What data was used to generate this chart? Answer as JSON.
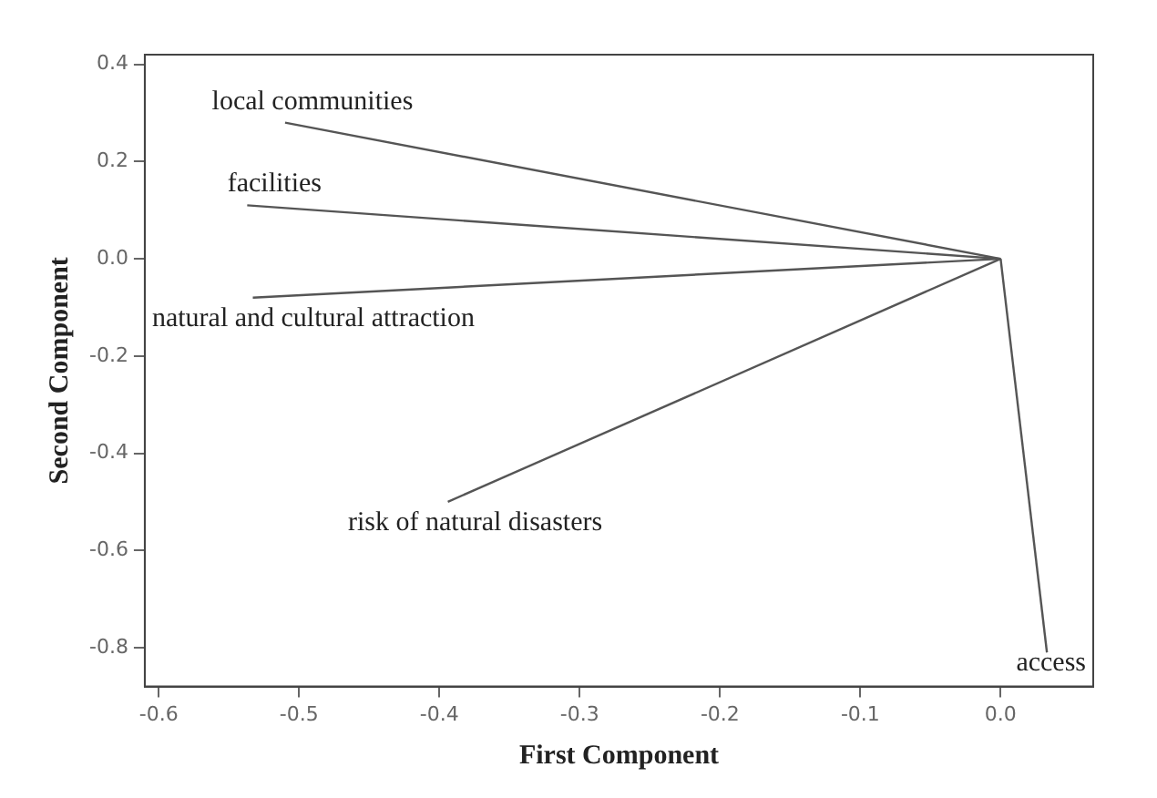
{
  "chart_data": {
    "type": "line",
    "xlabel": "First Component",
    "ylabel": "Second Component",
    "xlim": [
      -0.61,
      0.066
    ],
    "ylim": [
      -0.88,
      0.42
    ],
    "xticks": [
      {
        "value": -0.6,
        "label": "-0.6"
      },
      {
        "value": -0.5,
        "label": "-0.5"
      },
      {
        "value": -0.4,
        "label": "-0.4"
      },
      {
        "value": -0.3,
        "label": "-0.3"
      },
      {
        "value": -0.2,
        "label": "-0.2"
      },
      {
        "value": -0.1,
        "label": "-0.1"
      },
      {
        "value": 0,
        "label": "0.0"
      }
    ],
    "yticks": [
      {
        "value": -0.8,
        "label": "-0.8"
      },
      {
        "value": -0.6,
        "label": "-0.6"
      },
      {
        "value": -0.4,
        "label": "-0.4"
      },
      {
        "value": -0.2,
        "label": "-0.2"
      },
      {
        "value": 0,
        "label": "0.0"
      },
      {
        "value": 0.2,
        "label": "0.2"
      },
      {
        "value": 0.4,
        "label": "0.4"
      }
    ],
    "grid": false,
    "legend": false,
    "marker": "none",
    "line_style": "solid",
    "series": [
      {
        "name": "local communities",
        "color": "#555555",
        "x": [
          0,
          -0.51
        ],
        "values": [
          0,
          0.28
        ]
      },
      {
        "name": "facilities",
        "color": "#555555",
        "x": [
          0,
          -0.537
        ],
        "values": [
          0,
          0.11
        ]
      },
      {
        "name": "natural and cultural attraction",
        "color": "#555555",
        "x": [
          0,
          -0.533
        ],
        "values": [
          0,
          -0.08
        ]
      },
      {
        "name": "risk of natural disasters",
        "color": "#555555",
        "x": [
          0,
          -0.394
        ],
        "values": [
          0,
          -0.5
        ]
      },
      {
        "name": "access",
        "color": "#555555",
        "x": [
          0,
          0.033
        ],
        "values": [
          0,
          -0.81
        ]
      }
    ]
  }
}
